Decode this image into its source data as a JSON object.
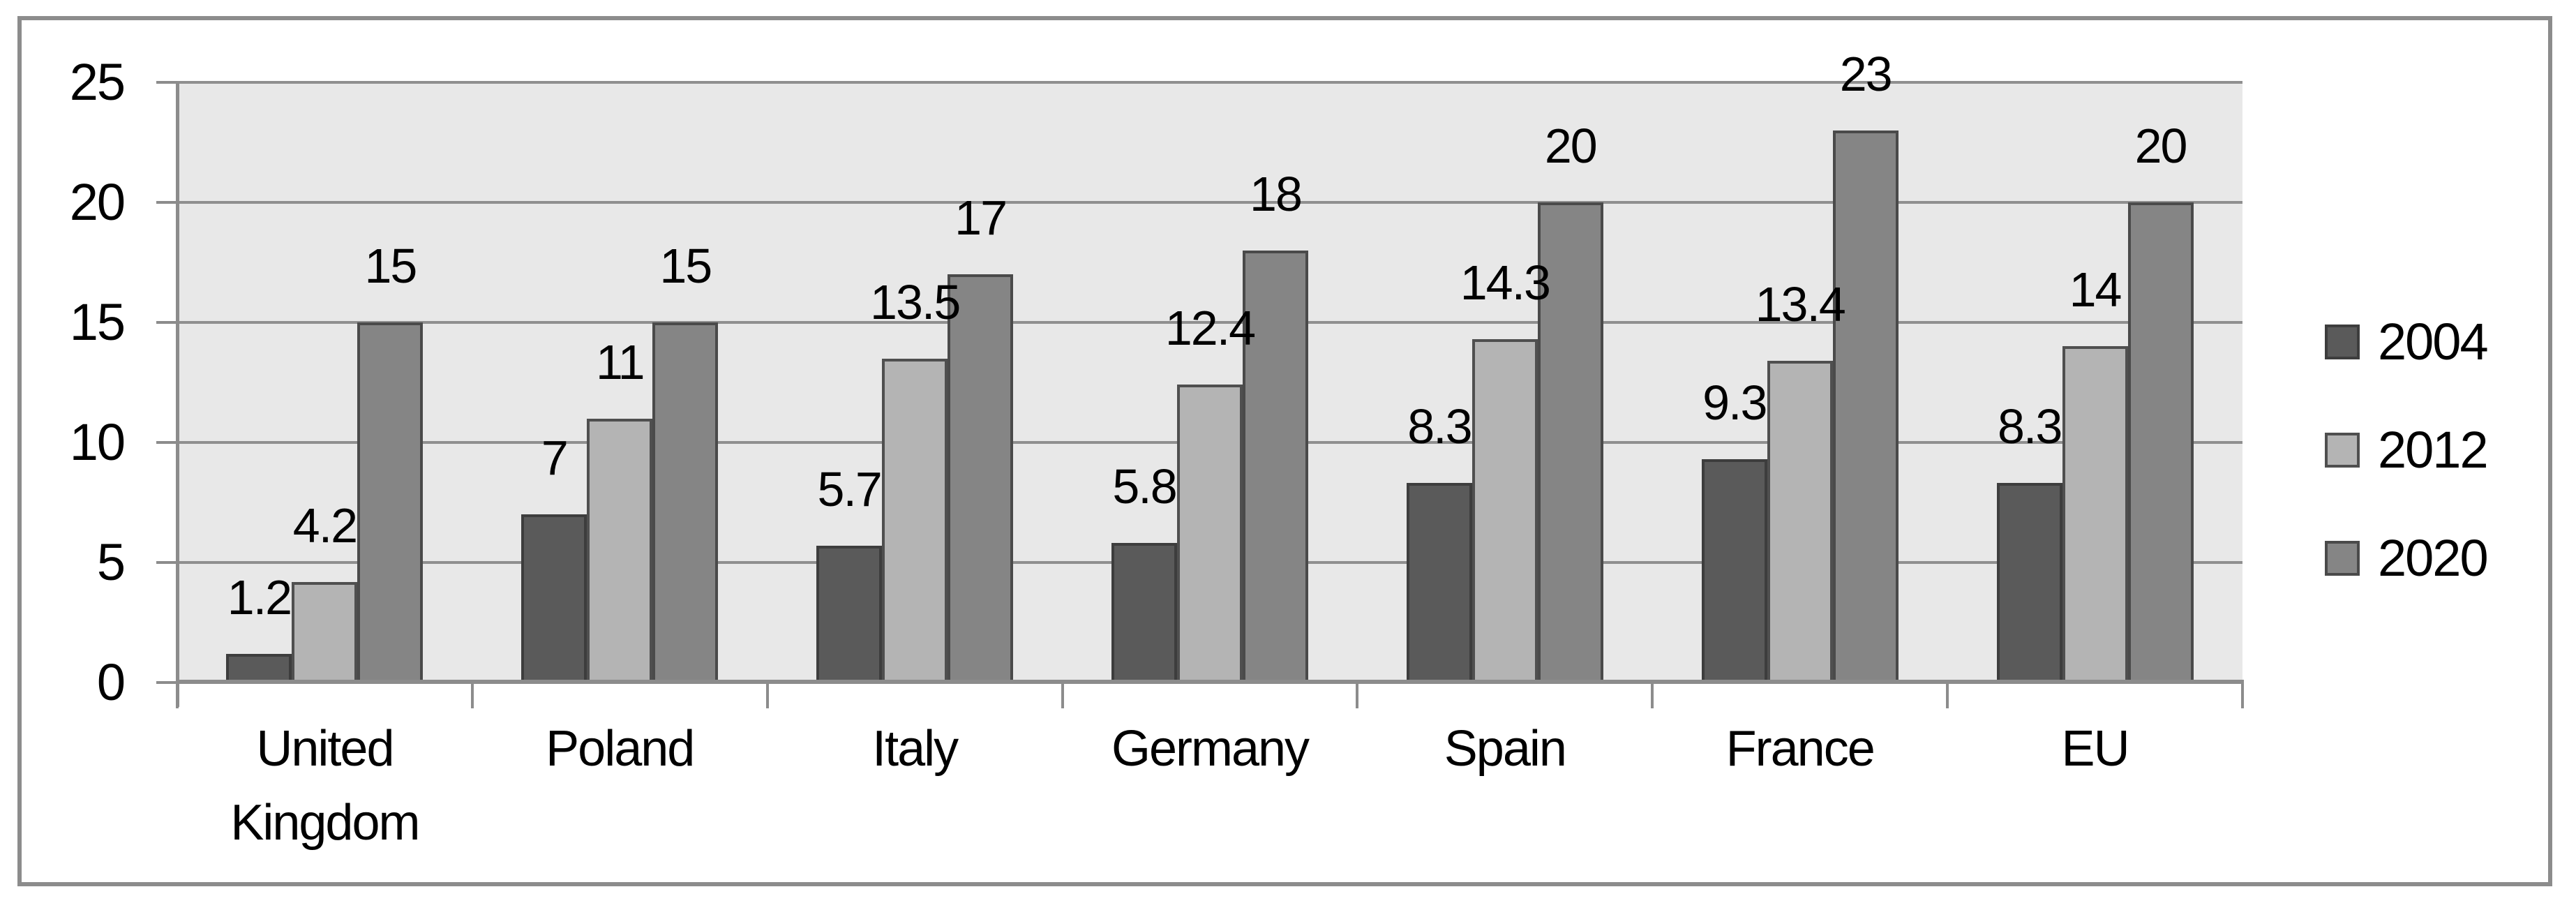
{
  "page": {
    "background": "#ffffff",
    "frame_border_color": "#8c8c8c"
  },
  "chart_data": {
    "type": "bar",
    "title": "",
    "xlabel": "",
    "ylabel": "",
    "categories": [
      "United Kingdom",
      "Poland",
      "Italy",
      "Germany",
      "Spain",
      "France",
      "EU"
    ],
    "series": [
      {
        "name": "2004",
        "values": [
          1.2,
          7,
          5.7,
          5.8,
          8.3,
          9.3,
          8.3
        ],
        "fill": "#5a5a5a",
        "border": "#3d3d3d"
      },
      {
        "name": "2012",
        "values": [
          4.2,
          11,
          13.5,
          12.4,
          14.3,
          13.4,
          14
        ],
        "fill": "#b4b4b4",
        "border": "#4f4f4f"
      },
      {
        "name": "2020",
        "values": [
          15,
          15,
          17,
          18,
          20,
          23,
          20
        ],
        "fill": "#858585",
        "border": "#4a4a4a"
      }
    ],
    "data_labels_visible": true,
    "yticks": [
      0,
      5,
      10,
      15,
      20,
      25
    ],
    "ylim": [
      0,
      25
    ],
    "grid": true,
    "legend_position": "right",
    "legend_entries": [
      "2004",
      "2012",
      "2020"
    ],
    "plot_bg": "#e8e8e8",
    "gridline_color": "#8f8f8f",
    "axis_color": "#8c8c8c",
    "text_color": "#000000"
  }
}
